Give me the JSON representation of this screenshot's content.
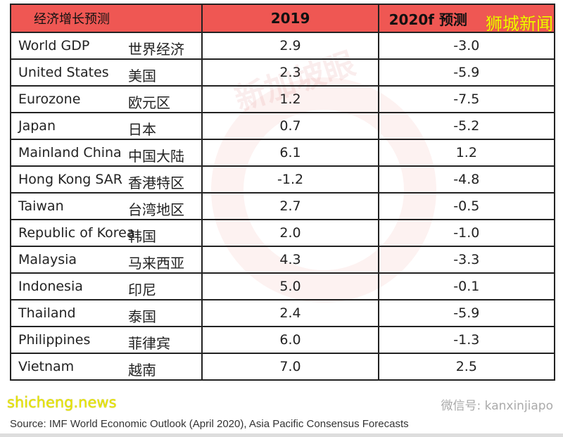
{
  "header": {
    "label": "经济增长预测",
    "col2019": "2019",
    "col2020": "2020f 预测"
  },
  "rows": [
    {
      "en": "World GDP",
      "zh": "世界经济",
      "y2019": "2.9",
      "y2020": "-3.0"
    },
    {
      "en": "United States",
      "zh": "美国",
      "y2019": "2.3",
      "y2020": "-5.9"
    },
    {
      "en": "Eurozone",
      "zh": "欧元区",
      "y2019": "1.2",
      "y2020": "-7.5"
    },
    {
      "en": "Japan",
      "zh": "日本",
      "y2019": "0.7",
      "y2020": "-5.2"
    },
    {
      "en": "Mainland China",
      "zh": "中国大陆",
      "y2019": "6.1",
      "y2020": "1.2"
    },
    {
      "en": "Hong Kong SAR",
      "zh": "香港特区",
      "y2019": "-1.2",
      "y2020": "-4.8"
    },
    {
      "en": "Taiwan",
      "zh": "台湾地区",
      "y2019": "2.7",
      "y2020": "-0.5"
    },
    {
      "en": "Republic of Korea",
      "zh": "韩国",
      "y2019": "2.0",
      "y2020": "-1.0"
    },
    {
      "en": "Malaysia",
      "zh": "马来西亚",
      "y2019": "4.3",
      "y2020": "-3.3"
    },
    {
      "en": "Indonesia",
      "zh": "印尼",
      "y2019": "5.0",
      "y2020": "-0.1"
    },
    {
      "en": "Thailand",
      "zh": "泰国",
      "y2019": "2.4",
      "y2020": "-5.9"
    },
    {
      "en": "Philippines",
      "zh": "菲律宾",
      "y2019": "6.0",
      "y2020": "-1.3"
    },
    {
      "en": "Vietnam",
      "zh": "越南",
      "y2019": "7.0",
      "y2020": "2.5"
    }
  ],
  "source": "Source: IMF World Economic Outlook (April 2020), Asia Pacific Consensus Forecasts",
  "watermarks": {
    "logo": "狮城新闻",
    "site": "shicheng.news",
    "wechat": "微信号: kanxinjiapo",
    "center": "新加坡眼"
  }
}
